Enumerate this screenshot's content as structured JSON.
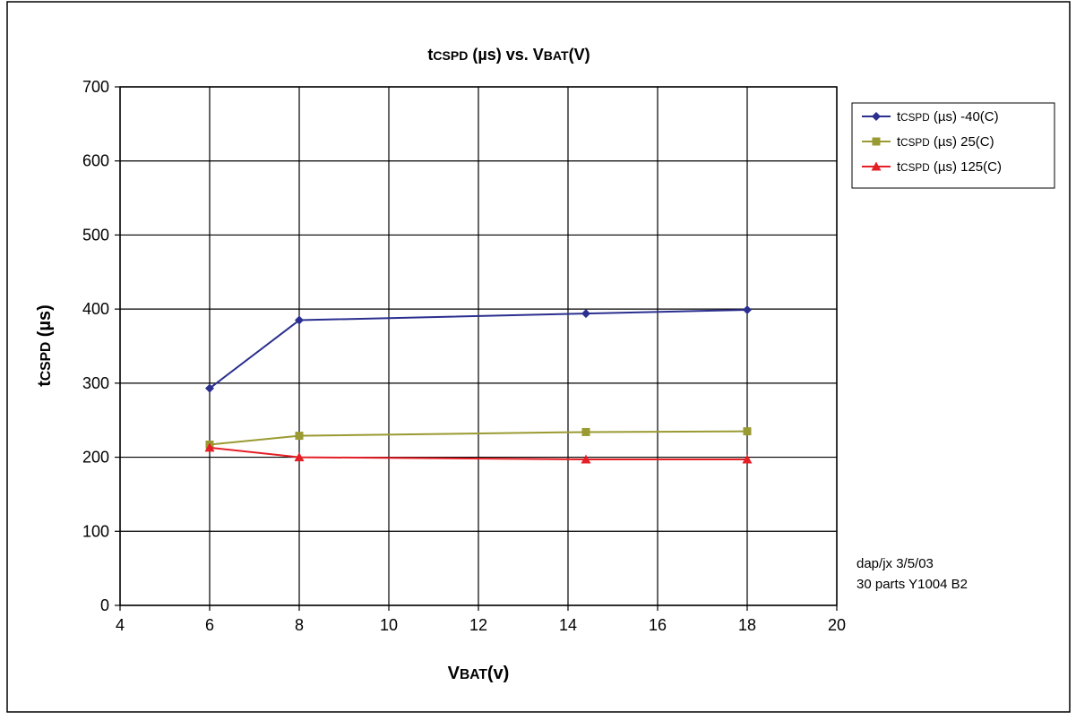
{
  "chart_data": {
    "type": "line",
    "title": {
      "part1": "t",
      "sub1": "CSPD",
      "part2": " (µs) vs. V",
      "sub2": "BAT",
      "part3": "(V)"
    },
    "xlabel": {
      "main": "V",
      "sub": "BAT",
      "rest": "(v)"
    },
    "ylabel": {
      "main": "t",
      "sub": "CSPD",
      "rest": " (µs)"
    },
    "xlim": [
      4,
      20
    ],
    "ylim": [
      0,
      700
    ],
    "xticks": [
      4,
      6,
      8,
      10,
      12,
      14,
      16,
      18,
      20
    ],
    "yticks": [
      0,
      100,
      200,
      300,
      400,
      500,
      600,
      700
    ],
    "grid": true,
    "legend_position": "right",
    "series": [
      {
        "legend": {
          "main": "t",
          "sub": "CSPD",
          "rest": " (µs) -40(C)"
        },
        "color": "#2b2f8f",
        "marker": "diamond",
        "x": [
          6,
          8,
          14.4,
          18
        ],
        "y": [
          293,
          385,
          394,
          399
        ]
      },
      {
        "legend": {
          "main": "t",
          "sub": "CSPD",
          "rest": " (µs) 25(C)"
        },
        "color": "#9a9a32",
        "marker": "square",
        "x": [
          6,
          8,
          14.4,
          18
        ],
        "y": [
          217,
          229,
          234,
          235
        ]
      },
      {
        "legend": {
          "main": "t",
          "sub": "CSPD",
          "rest": " (µs) 125(C)"
        },
        "color": "#e41f26",
        "marker": "triangle",
        "x": [
          6,
          8,
          14.4,
          18
        ],
        "y": [
          213,
          200,
          197,
          197
        ]
      }
    ],
    "annotations": [
      "dap/jx 3/5/03",
      "30 parts Y1004 B2"
    ]
  }
}
